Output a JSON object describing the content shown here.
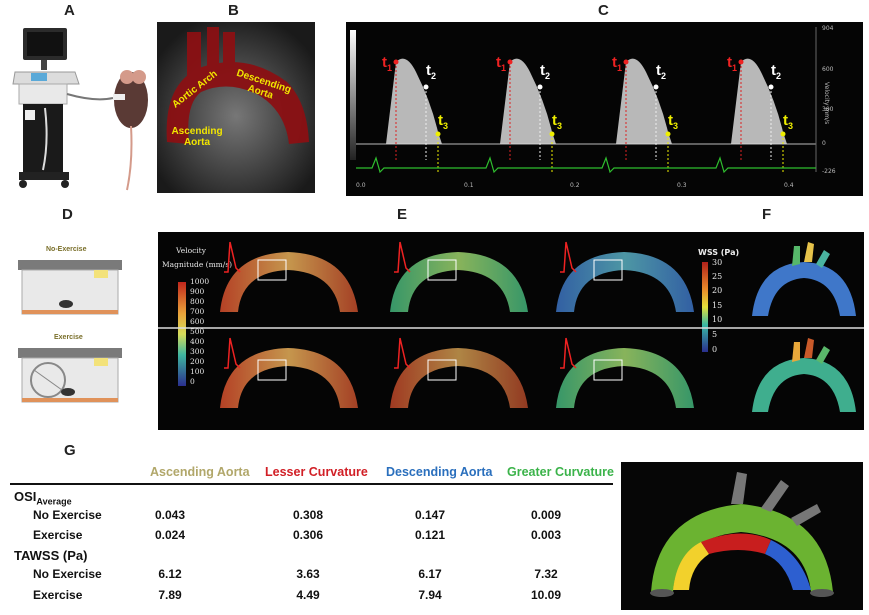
{
  "panel_labels": {
    "a": "A",
    "b": "B",
    "c": "C",
    "d": "D",
    "e": "E",
    "f": "F",
    "g": "G"
  },
  "panel_b": {
    "aortic_arch": "Aortic Arch",
    "descending": "Descending Aorta",
    "ascending": "Ascending Aorta"
  },
  "panel_c": {
    "y_ticks": [
      "904",
      "600",
      "300",
      "0",
      "-226"
    ],
    "y_axis_label": "Velocity mm/s",
    "x_ticks": [
      "0.0",
      "0.1",
      "0.2",
      "0.3",
      "0.4"
    ],
    "t1": "t",
    "t1_sub": "1",
    "t2": "t",
    "t2_sub": "2",
    "t3": "t",
    "t3_sub": "3"
  },
  "panel_d": {
    "no_exercise": "No-Exercise",
    "exercise": "Exercise"
  },
  "panel_e": {
    "legend_title_1": "Velocity",
    "legend_title_2": "Magnitude (mm/s)",
    "legend_ticks": [
      "1000",
      "900",
      "800",
      "700",
      "600",
      "500",
      "400",
      "300",
      "200",
      "100",
      "0"
    ]
  },
  "panel_f": {
    "legend_title": "WSS (Pa)",
    "legend_ticks": [
      "30",
      "25",
      "20",
      "15",
      "10",
      "5",
      "0"
    ]
  },
  "table": {
    "columns": [
      {
        "label": "Ascending Aorta",
        "color": "#b1a76a"
      },
      {
        "label": "Lesser Curvature",
        "color": "#d11f26"
      },
      {
        "label": "Descending Aorta",
        "color": "#2a6fbd"
      },
      {
        "label": "Greater Curvature",
        "color": "#3bb34a"
      }
    ],
    "osi_label": "OSI",
    "osi_sub": "Average",
    "tawss_label": "TAWSS (Pa)",
    "rows": {
      "osi_no": {
        "label": "No Exercise",
        "values": [
          "0.043",
          "0.308",
          "0.147",
          "0.009"
        ]
      },
      "osi_ex": {
        "label": "Exercise",
        "values": [
          "0.024",
          "0.306",
          "0.121",
          "0.003"
        ]
      },
      "tawss_no": {
        "label": "No Exercise",
        "values": [
          "6.12",
          "3.63",
          "6.17",
          "7.32"
        ]
      },
      "tawss_ex": {
        "label": "Exercise",
        "values": [
          "7.89",
          "4.49",
          "7.94",
          "10.09"
        ]
      }
    }
  }
}
